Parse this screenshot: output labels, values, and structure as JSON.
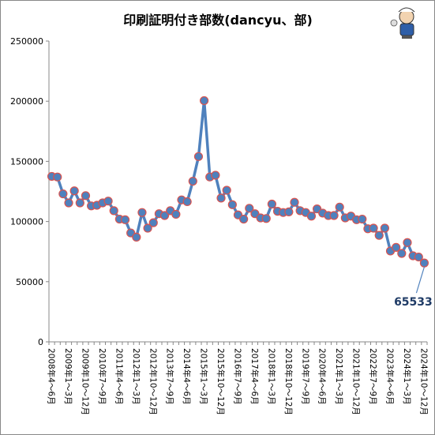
{
  "chart_data": {
    "type": "line",
    "title": "印刷証明付き部数(dancyu、部)",
    "xlabel": "",
    "ylabel": "",
    "ylim": [
      0,
      250000
    ],
    "yticks": [
      "0",
      "50000",
      "100000",
      "150000",
      "200000",
      "250000"
    ],
    "grid": false,
    "legend": "none",
    "series": [
      {
        "color": "#4f81bd",
        "marker_color": "#d9534f",
        "values": [
          137500,
          137000,
          123000,
          115500,
          125500,
          115500,
          121500,
          113000,
          113500,
          115500,
          117000,
          109000,
          102000,
          101500,
          90500,
          87000,
          107500,
          94500,
          99000,
          106500,
          105000,
          109000,
          106000,
          118000,
          116500,
          133500,
          154000,
          200500,
          137000,
          138500,
          119500,
          126000,
          114000,
          105500,
          102000,
          111000,
          106500,
          103000,
          102500,
          114500,
          108500,
          107500,
          108000,
          116000,
          109000,
          107500,
          104500,
          110500,
          107000,
          105000,
          105000,
          112000,
          103000,
          104500,
          101500,
          102000,
          94000,
          94500,
          88500,
          94500,
          75500,
          78500,
          73500,
          82500,
          71500,
          70500,
          65533
        ]
      }
    ],
    "x_labels": [
      "2008年4〜6月",
      "2009年1〜3月",
      "2009年10〜12月",
      "2010年7〜9月",
      "2011年4〜6月",
      "2012年1〜3月",
      "2012年10〜12月",
      "2013年7〜9月",
      "2014年4〜6月",
      "2015年1〜3月",
      "2015年10〜12月",
      "2016年7〜9月",
      "2017年4〜6月",
      "2018年1〜3月",
      "2018年10〜12月",
      "2019年7〜9月",
      "2020年4〜6月",
      "2021年1〜3月",
      "2021年10〜12月",
      "2022年7〜9月",
      "2023年4〜6月",
      "2024年1〜3月",
      "2024年10〜12月"
    ],
    "annotation": "65533"
  },
  "icon": "mascot-icon"
}
